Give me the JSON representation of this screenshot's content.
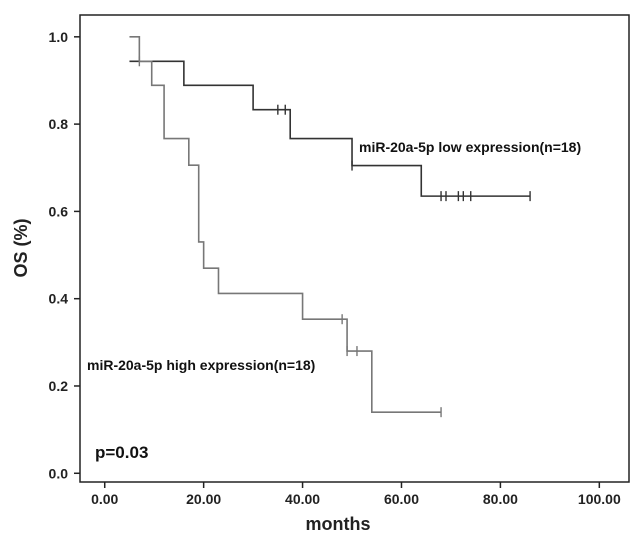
{
  "chart_data": {
    "type": "line",
    "subtype": "kaplan-meier",
    "title": "",
    "xlabel": "months",
    "ylabel": "OS (%)",
    "xlim": [
      -5,
      106
    ],
    "ylim": [
      -0.02,
      1.05
    ],
    "x_ticks": [
      0,
      20,
      40,
      60,
      80,
      100
    ],
    "x_tick_labels": [
      "0.00",
      "20.00",
      "40.00",
      "60.00",
      "80.00",
      "100.00"
    ],
    "y_ticks": [
      0,
      0.2,
      0.4,
      0.6,
      0.8,
      1.0
    ],
    "y_tick_labels": [
      "0.0",
      "0.2",
      "0.4",
      "0.6",
      "0.8",
      "1.0"
    ],
    "grid": false,
    "legend": "none",
    "series": [
      {
        "name": "miR-20a-5p low expression(n=18)",
        "color": "#333333",
        "steps": [
          [
            5,
            0.944
          ],
          [
            16,
            0.889
          ],
          [
            30,
            0.833
          ],
          [
            37.5,
            0.767
          ],
          [
            50,
            0.705
          ],
          [
            64,
            0.635
          ],
          [
            86,
            0.635
          ]
        ],
        "censored": [
          [
            35,
            0.833
          ],
          [
            36.5,
            0.833
          ],
          [
            50,
            0.705
          ],
          [
            68,
            0.635
          ],
          [
            69,
            0.635
          ],
          [
            71.5,
            0.635
          ],
          [
            72.5,
            0.635
          ],
          [
            74,
            0.635
          ],
          [
            86,
            0.635
          ]
        ]
      },
      {
        "name": "miR-20a-5p high expression(n=18)",
        "color": "#777777",
        "steps": [
          [
            5,
            1.0
          ],
          [
            7,
            0.944
          ],
          [
            9.5,
            0.889
          ],
          [
            12,
            0.767
          ],
          [
            17,
            0.706
          ],
          [
            19,
            0.53
          ],
          [
            20,
            0.47
          ],
          [
            23,
            0.412
          ],
          [
            40,
            0.353
          ],
          [
            49,
            0.28
          ],
          [
            54,
            0.14
          ],
          [
            68,
            0.14
          ]
        ],
        "censored": [
          [
            7,
            0.944
          ],
          [
            48,
            0.353
          ],
          [
            49,
            0.28
          ],
          [
            51,
            0.28
          ],
          [
            68,
            0.14
          ]
        ]
      }
    ],
    "annotations": [
      {
        "text": "miR-20a-5p low expression(n=18)",
        "x": 51,
        "y": 0.73
      },
      {
        "text": "miR-20a-5p high expression(n=18)",
        "x": -4,
        "y": 0.21
      },
      {
        "text": "p=0.03",
        "x": -3,
        "y": 0.01
      }
    ]
  }
}
